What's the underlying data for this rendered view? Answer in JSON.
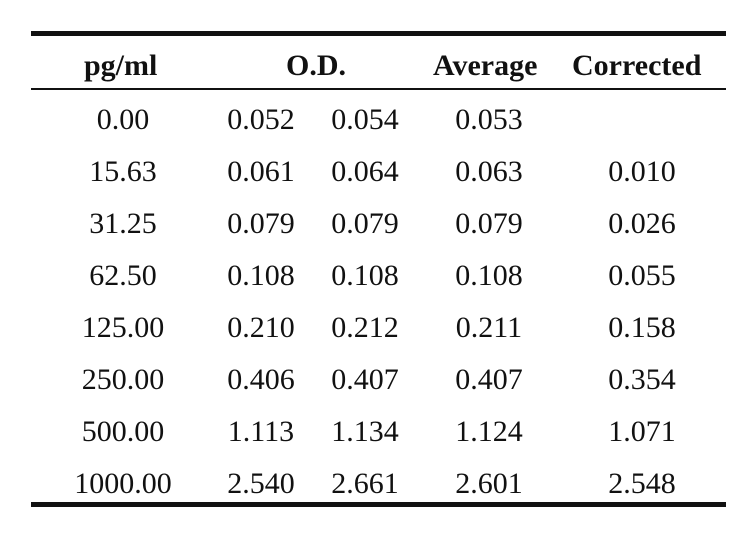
{
  "table": {
    "headers": {
      "pg_ml": "pg/ml",
      "od": "O.D.",
      "average": "Average",
      "corrected": "Corrected"
    },
    "rows": [
      {
        "pg_ml": "0.00",
        "od1": "0.052",
        "od2": "0.054",
        "average": "0.053",
        "corrected": ""
      },
      {
        "pg_ml": "15.63",
        "od1": "0.061",
        "od2": "0.064",
        "average": "0.063",
        "corrected": "0.010"
      },
      {
        "pg_ml": "31.25",
        "od1": "0.079",
        "od2": "0.079",
        "average": "0.079",
        "corrected": "0.026"
      },
      {
        "pg_ml": "62.50",
        "od1": "0.108",
        "od2": "0.108",
        "average": "0.108",
        "corrected": "0.055"
      },
      {
        "pg_ml": "125.00",
        "od1": "0.210",
        "od2": "0.212",
        "average": "0.211",
        "corrected": "0.158"
      },
      {
        "pg_ml": "250.00",
        "od1": "0.406",
        "od2": "0.407",
        "average": "0.407",
        "corrected": "0.354"
      },
      {
        "pg_ml": "500.00",
        "od1": "1.113",
        "od2": "1.134",
        "average": "1.124",
        "corrected": "1.071"
      },
      {
        "pg_ml": "1000.00",
        "od1": "2.540",
        "od2": "2.661",
        "average": "2.601",
        "corrected": "2.548"
      }
    ]
  }
}
